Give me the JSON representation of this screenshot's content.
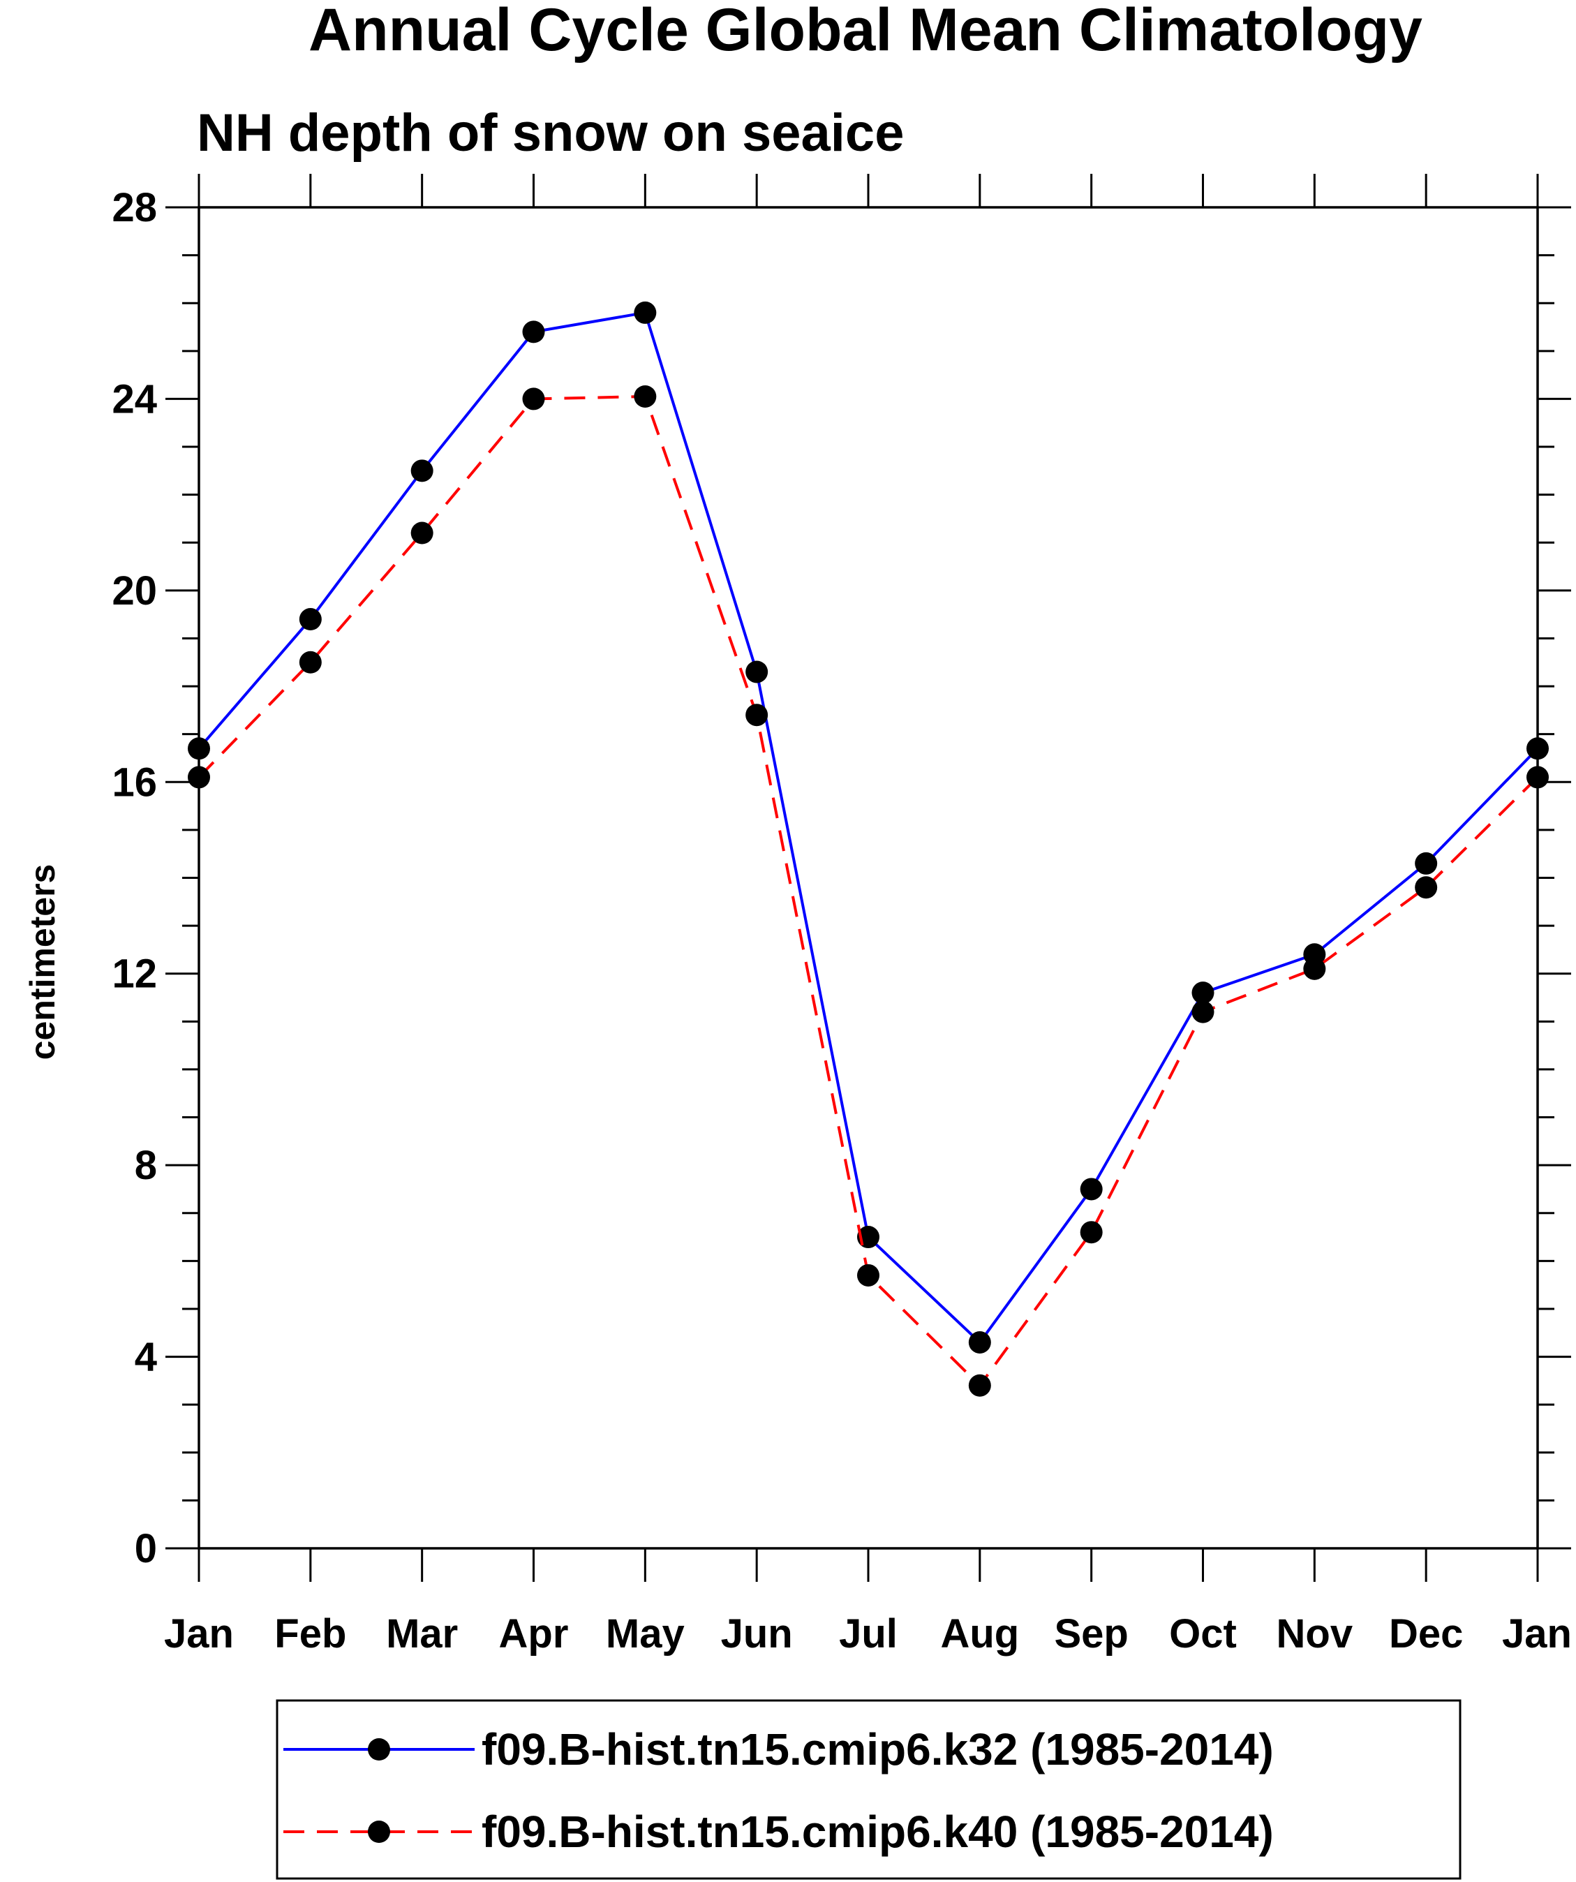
{
  "chart_data": {
    "type": "line",
    "title": "Annual Cycle Global Mean Climatology",
    "subtitle": "NH depth of snow on seaice",
    "xlabel": "",
    "ylabel": "centimeters",
    "categories": [
      "Jan",
      "Feb",
      "Mar",
      "Apr",
      "May",
      "Jun",
      "Jul",
      "Aug",
      "Sep",
      "Oct",
      "Nov",
      "Dec",
      "Jan"
    ],
    "ylim": [
      0,
      28
    ],
    "yticks": [
      "0",
      "4",
      "8",
      "12",
      "16",
      "20",
      "24",
      "28"
    ],
    "yminor_step": 1,
    "grid": false,
    "legend_position": "bottom",
    "series": [
      {
        "name": "f09.B-hist.tn15.cmip6.k32 (1985-2014)",
        "color": "#0000ff",
        "dash": "solid",
        "marker": "filled-circle",
        "values": [
          16.7,
          19.4,
          22.5,
          25.4,
          25.8,
          18.3,
          6.5,
          4.3,
          7.5,
          11.6,
          12.4,
          14.3,
          16.7
        ]
      },
      {
        "name": "f09.B-hist.tn15.cmip6.k40 (1985-2014)",
        "color": "#ff0000",
        "dash": "dashed",
        "marker": "filled-circle",
        "values": [
          16.1,
          18.5,
          21.2,
          24.0,
          24.05,
          17.4,
          5.7,
          3.4,
          6.6,
          11.2,
          12.1,
          13.8,
          16.1
        ]
      }
    ]
  }
}
